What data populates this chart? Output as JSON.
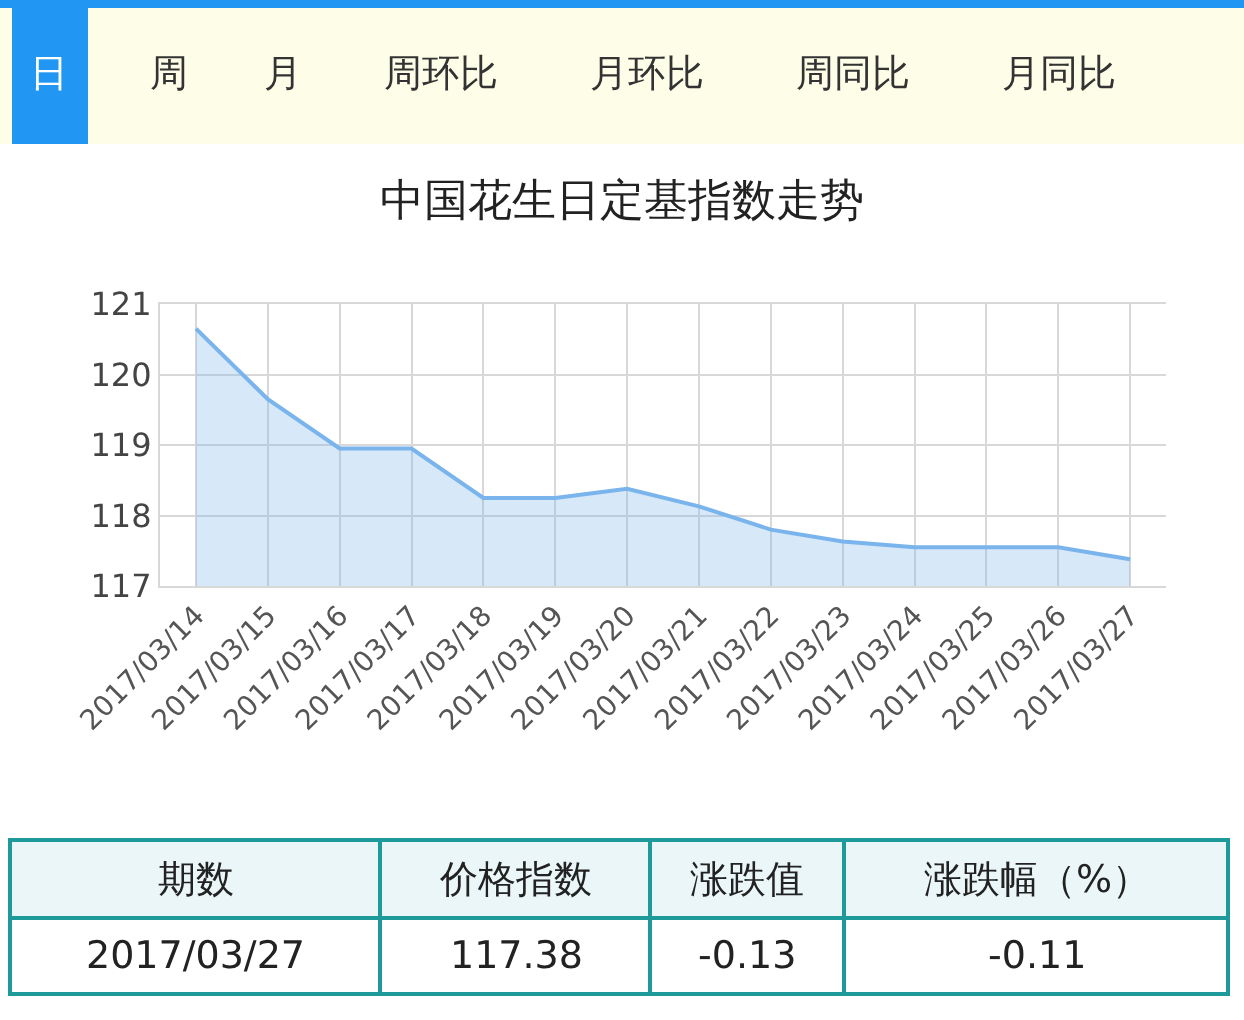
{
  "chart_data": {
    "type": "area",
    "title": "中国花生日定基指数走势",
    "categories": [
      "2017/03/14",
      "2017/03/15",
      "2017/03/16",
      "2017/03/17",
      "2017/03/18",
      "2017/03/19",
      "2017/03/20",
      "2017/03/21",
      "2017/03/22",
      "2017/03/23",
      "2017/03/24",
      "2017/03/25",
      "2017/03/26",
      "2017/03/27"
    ],
    "series": [
      {
        "color": "#7ab4ec",
        "values": [
          120.65,
          119.65,
          118.95,
          118.95,
          118.25,
          118.25,
          118.38,
          118.13,
          117.8,
          117.63,
          117.55,
          117.55,
          117.55,
          117.38
        ]
      }
    ],
    "ylim": [
      117,
      121
    ],
    "yticks": [
      117,
      118,
      119,
      120,
      121
    ],
    "grid": true,
    "marker": "none",
    "annotations": [
      "日",
      "周",
      "月",
      "周环比",
      "月环比",
      "周同比",
      "月同比",
      "期数",
      "价格指数",
      "涨跌值",
      "涨跌幅（%）",
      "2017/03/27",
      "117.38",
      "-0.13",
      "-0.11"
    ]
  }
}
